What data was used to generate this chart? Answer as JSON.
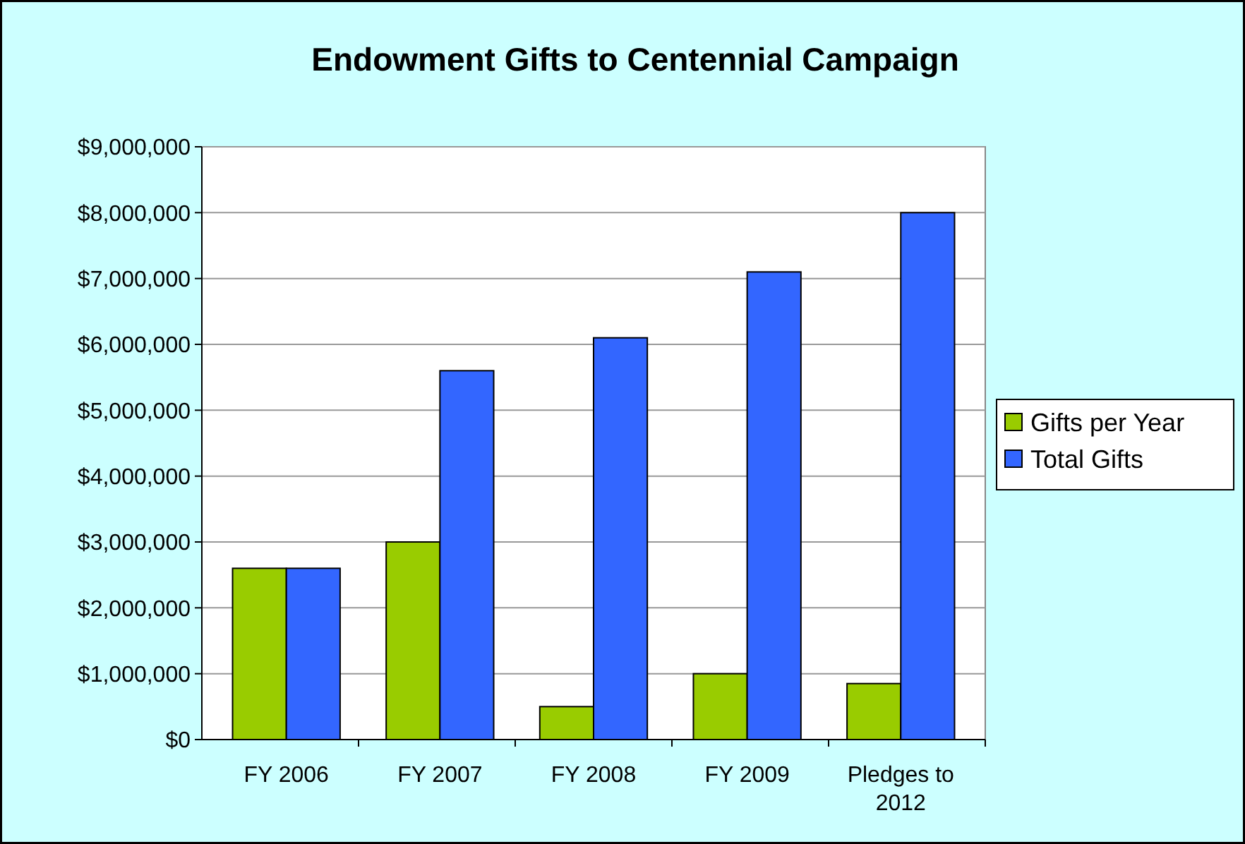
{
  "chart_data": {
    "type": "bar",
    "title": "Endowment Gifts to Centennial Campaign",
    "categories": [
      "FY 2006",
      "FY 2007",
      "FY 2008",
      "FY 2009",
      "Pledges to 2012"
    ],
    "series": [
      {
        "name": "Gifts per Year",
        "color": "#99cc00",
        "values": [
          2600000,
          3000000,
          500000,
          1000000,
          850000
        ]
      },
      {
        "name": "Total Gifts",
        "color": "#3366ff",
        "values": [
          2600000,
          5600000,
          6100000,
          7100000,
          8000000
        ]
      }
    ],
    "ylim": [
      0,
      9000000
    ],
    "yticks": [
      {
        "value": 0,
        "label": "$0"
      },
      {
        "value": 1000000,
        "label": "$1,000,000"
      },
      {
        "value": 2000000,
        "label": "$2,000,000"
      },
      {
        "value": 3000000,
        "label": "$3,000,000"
      },
      {
        "value": 4000000,
        "label": "$4,000,000"
      },
      {
        "value": 5000000,
        "label": "$5,000,000"
      },
      {
        "value": 6000000,
        "label": "$6,000,000"
      },
      {
        "value": 7000000,
        "label": "$7,000,000"
      },
      {
        "value": 8000000,
        "label": "$8,000,000"
      },
      {
        "value": 9000000,
        "label": "$9,000,000"
      }
    ],
    "grid": "y",
    "legend": "right"
  }
}
